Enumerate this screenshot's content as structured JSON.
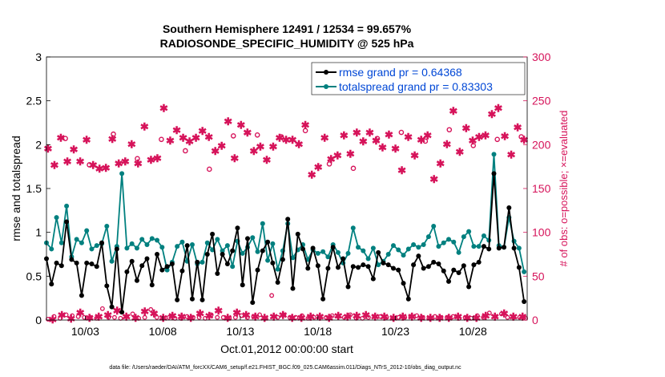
{
  "chart_data": {
    "type": "line",
    "title_line1": "Southern Hemisphere 12491 / 12534 = 99.657%",
    "title_line2": "RADIOSONDE_SPECIFIC_HUMIDITY @ 525 hPa",
    "xlabel": "Oct.01,2012 00:00:00 start",
    "ylabel_left": "rmse and totalspread",
    "ylabel_right": "# of obs: o=possible; ×=evaluated",
    "footer": "data file: /Users/raeder/DAI/ATM_forcXX/CAM6_setup/f.e21.FHIST_BGC.f09_025.CAM6assim.011/Diags_NTrS_2012-10/obs_diag_output.nc",
    "xlim": [
      0.5,
      31.5
    ],
    "ylim_left": [
      0,
      3
    ],
    "ylim_right": [
      0,
      300
    ],
    "x_ticks": [
      {
        "x": 3,
        "label": "10/03"
      },
      {
        "x": 8,
        "label": "10/08"
      },
      {
        "x": 13,
        "label": "10/13"
      },
      {
        "x": 18,
        "label": "10/18"
      },
      {
        "x": 23,
        "label": "10/23"
      },
      {
        "x": 28,
        "label": "10/28"
      }
    ],
    "left_ticks": [
      "0",
      "0.5",
      "1",
      "1.5",
      "2",
      "2.5",
      "3"
    ],
    "right_ticks": [
      "0",
      "50",
      "100",
      "150",
      "200",
      "250",
      "300"
    ],
    "legend": [
      {
        "label": "rmse grand pr = 0.64368",
        "color": "#000000"
      },
      {
        "label": "totalspread grand pr = 0.83303",
        "color": "#00807f"
      }
    ],
    "colors": {
      "rmse": "#000000",
      "spread": "#00807f",
      "obs": "#d6135a",
      "legend_text": "#0047d6"
    },
    "rmse": [
      0.7,
      0.41,
      0.65,
      0.62,
      1.12,
      0.69,
      0.65,
      0.28,
      0.65,
      0.64,
      0.61,
      0.88,
      0.39,
      0.15,
      0.81,
      0.09,
      0.55,
      0.67,
      0.45,
      0.62,
      0.7,
      0.4,
      0.75,
      0.57,
      0.61,
      0.64,
      0.23,
      0.56,
      0.85,
      0.24,
      0.66,
      0.23,
      0.75,
      0.98,
      0.53,
      0.75,
      0.64,
      0.79,
      1.05,
      0.4,
      0.93,
      0.2,
      0.57,
      0.79,
      0.89,
      0.65,
      0.43,
      0.69,
      1.15,
      0.36,
      0.98,
      0.81,
      0.59,
      0.82,
      0.62,
      0.24,
      0.59,
      0.83,
      0.6,
      0.7,
      0.38,
      0.61,
      0.6,
      0.63,
      0.61,
      0.47,
      0.77,
      0.65,
      0.63,
      0.59,
      0.57,
      0.42,
      0.24,
      0.63,
      0.73,
      0.59,
      0.61,
      0.66,
      0.64,
      0.56,
      0.44,
      0.57,
      0.54,
      0.62,
      0.38,
      0.63,
      0.66,
      0.84,
      0.81,
      1.67,
      0.82,
      0.83,
      1.28,
      0.82,
      0.6,
      0.21
    ],
    "spread": [
      0.88,
      0.81,
      1.17,
      0.88,
      1.3,
      0.72,
      0.92,
      0.88,
      1.02,
      0.81,
      0.85,
      0.87,
      1.07,
      0.67,
      0.84,
      1.67,
      0.82,
      0.87,
      0.82,
      0.92,
      0.86,
      0.93,
      0.91,
      0.83,
      0.57,
      0.66,
      0.84,
      0.89,
      0.67,
      0.86,
      0.64,
      0.66,
      0.88,
      0.8,
      0.92,
      0.79,
      0.85,
      0.61,
      0.9,
      0.76,
      0.83,
      0.94,
      0.78,
      1.1,
      0.68,
      0.87,
      0.58,
      0.79,
      1.1,
      0.71,
      0.8,
      0.86,
      0.69,
      0.8,
      0.76,
      0.78,
      0.72,
      0.86,
      0.77,
      0.65,
      0.76,
      1.05,
      0.83,
      0.79,
      0.7,
      0.82,
      0.63,
      0.67,
      0.75,
      0.85,
      0.8,
      0.74,
      0.81,
      0.86,
      0.83,
      0.86,
      0.95,
      1.07,
      0.84,
      0.88,
      0.92,
      0.89,
      0.77,
      0.95,
      1.01,
      0.84,
      0.84,
      0.96,
      0.91,
      1.89,
      0.85,
      0.83,
      1.17,
      0.9,
      0.82,
      0.55
    ],
    "obs_evaluated": [
      195,
      176,
      207,
      180,
      194,
      180,
      205,
      176,
      172,
      173,
      206,
      178,
      180,
      200,
      178,
      220,
      182,
      184,
      241,
      204,
      216,
      207,
      203,
      207,
      215,
      208,
      192,
      198,
      226,
      184,
      222,
      213,
      192,
      197,
      182,
      197,
      207,
      205,
      205,
      200,
      222,
      165,
      174,
      207,
      183,
      187,
      210,
      189,
      213,
      203,
      213,
      204,
      196,
      211,
      195,
      170,
      208,
      187,
      205,
      210,
      160,
      178,
      200,
      238,
      191,
      218,
      204,
      208,
      210,
      234,
      241,
      209,
      188,
      219,
      205
    ],
    "obs_possible": [
      207,
      177,
      212,
      184,
      206,
      193,
      172,
      210,
      211,
      209,
      216,
      178,
      173,
      207,
      214,
      204,
      217,
      199,
      206,
      209
    ],
    "obs_low": [
      1,
      4,
      2,
      6,
      5,
      4,
      3,
      3,
      2,
      13,
      3,
      3,
      2,
      4,
      7,
      2,
      3,
      12,
      3,
      2,
      3,
      2,
      2,
      4,
      3,
      3,
      2,
      6,
      3,
      3,
      2,
      3,
      5,
      3,
      4,
      6,
      2,
      28,
      3,
      6,
      3,
      3,
      5,
      2,
      3,
      3,
      3,
      5,
      4,
      3,
      6,
      2,
      2,
      3,
      4,
      4,
      3,
      2,
      3,
      3,
      4,
      5,
      3,
      2,
      4,
      3,
      3,
      4,
      2,
      3,
      2,
      5,
      3,
      8,
      4,
      7,
      3,
      3,
      3,
      2
    ],
    "obs_low_evaluated": [
      0,
      5,
      1,
      8,
      2,
      3,
      5,
      10,
      3,
      2,
      9,
      7,
      2,
      4,
      3,
      2,
      7,
      4,
      10,
      2,
      8,
      5,
      3,
      2,
      3,
      5,
      2,
      2,
      3,
      3,
      2,
      4,
      3,
      4,
      5,
      3,
      3,
      2,
      3,
      3,
      2,
      2,
      2,
      2,
      3,
      2,
      2,
      4,
      3,
      7,
      3,
      3
    ]
  }
}
